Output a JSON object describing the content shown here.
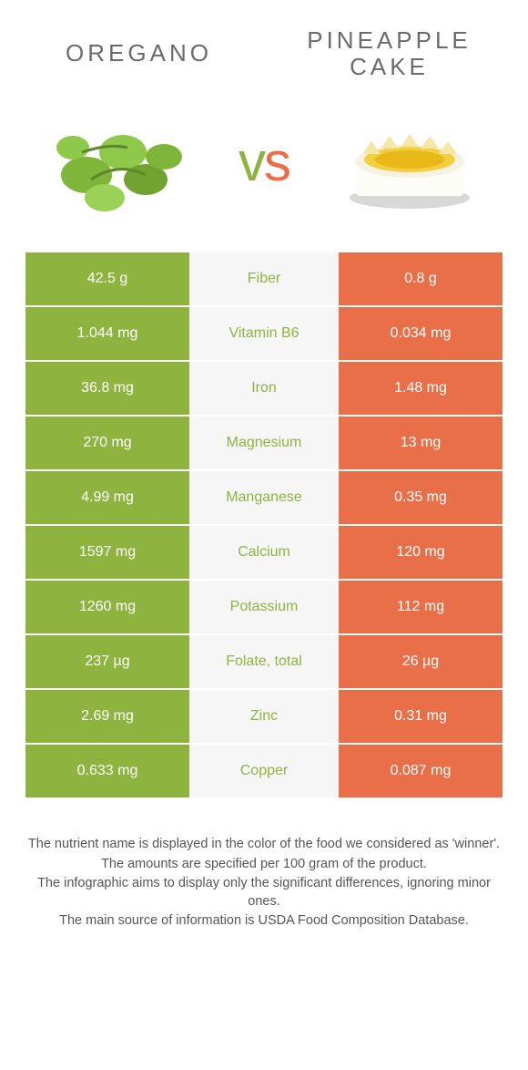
{
  "left": {
    "title": "OREGANO",
    "color": "#8fb33f"
  },
  "right": {
    "title": "PINEAPPLE CAKE",
    "color": "#e86f48"
  },
  "table": {
    "rows": [
      {
        "nutrient": "Fiber",
        "left_value": "42.5 g",
        "right_value": "0.8 g",
        "winner": "left"
      },
      {
        "nutrient": "Vitamin B6",
        "left_value": "1.044 mg",
        "right_value": "0.034 mg",
        "winner": "left"
      },
      {
        "nutrient": "Iron",
        "left_value": "36.8 mg",
        "right_value": "1.48 mg",
        "winner": "left"
      },
      {
        "nutrient": "Magnesium",
        "left_value": "270 mg",
        "right_value": "13 mg",
        "winner": "left"
      },
      {
        "nutrient": "Manganese",
        "left_value": "4.99 mg",
        "right_value": "0.35 mg",
        "winner": "left"
      },
      {
        "nutrient": "Calcium",
        "left_value": "1597 mg",
        "right_value": "120 mg",
        "winner": "left"
      },
      {
        "nutrient": "Potassium",
        "left_value": "1260 mg",
        "right_value": "112 mg",
        "winner": "left"
      },
      {
        "nutrient": "Folate, total",
        "left_value": "237 µg",
        "right_value": "26 µg",
        "winner": "left"
      },
      {
        "nutrient": "Zinc",
        "left_value": "2.69 mg",
        "right_value": "0.31 mg",
        "winner": "left"
      },
      {
        "nutrient": "Copper",
        "left_value": "0.633 mg",
        "right_value": "0.087 mg",
        "winner": "left"
      }
    ]
  },
  "footer": {
    "line1": "The nutrient name is displayed in the color of the food we considered as 'winner'.",
    "line2": "The amounts are specified per 100 gram of the product.",
    "line3": "The infographic aims to display only the significant differences, ignoring minor ones.",
    "line4": "The main source of information is USDA Food Composition Database."
  }
}
